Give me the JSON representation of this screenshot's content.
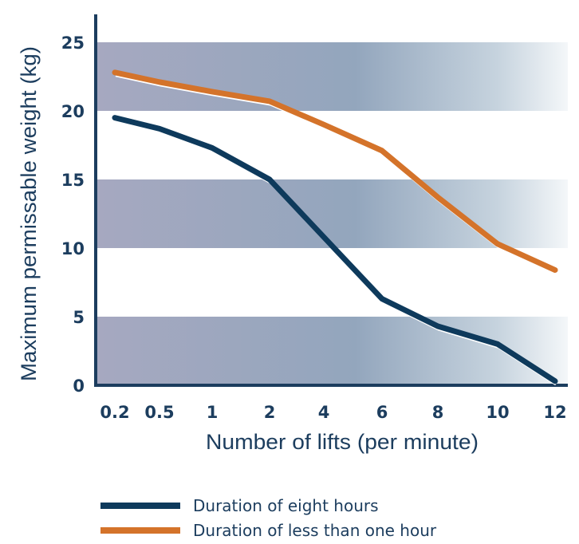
{
  "chart_data": {
    "type": "line",
    "xlabel": "Number of lifts (per minute)",
    "ylabel": "Maximum permissable weight (kg)",
    "x_ticks": [
      "0.2",
      "0.5",
      "1",
      "2",
      "4",
      "6",
      "8",
      "10",
      "12"
    ],
    "y_ticks": [
      "0",
      "5",
      "10",
      "15",
      "20",
      "25"
    ],
    "ylim": [
      0,
      26
    ],
    "legend_position": "bottom",
    "grid": "alternating horizontal bands",
    "series": [
      {
        "name": "Duration of eight hours",
        "color": "#0e3a5c",
        "x": [
          "0.2",
          "0.5",
          "1",
          "2",
          "4",
          "6",
          "8",
          "10",
          "12"
        ],
        "values": [
          19.5,
          18.7,
          17.3,
          15.0,
          10.8,
          6.3,
          4.3,
          3.0,
          0.3
        ]
      },
      {
        "name": "Duration of less than one hour",
        "color": "#d4732a",
        "x": [
          "0.2",
          "0.5",
          "1",
          "2",
          "4",
          "6",
          "8",
          "10",
          "12"
        ],
        "values": [
          22.8,
          22.1,
          21.4,
          20.7,
          19.0,
          17.1,
          13.7,
          10.3,
          8.4
        ]
      }
    ]
  }
}
